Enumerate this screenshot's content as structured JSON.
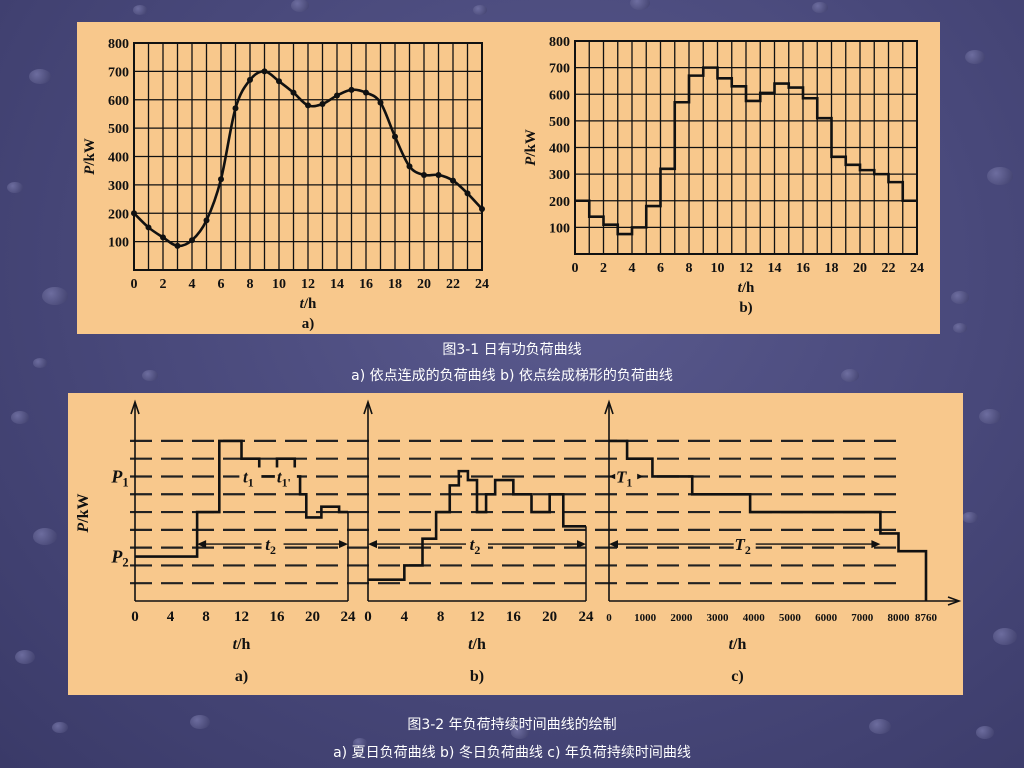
{
  "figure1": {
    "caption_title": "图3-1    日有功负荷曲线",
    "caption_sub": "a) 依点连成的负荷曲线      b) 依点绘成梯形的负荷曲线"
  },
  "figure2": {
    "caption_title": "图3-2  年负荷持续时间曲线的绘制",
    "caption_sub": "a) 夏日负荷曲线   b) 冬日负荷曲线   c) 年负荷持续时间曲线"
  },
  "colors": {
    "panel": "#f8c88c",
    "ink": "#111111",
    "background": "#48487a"
  },
  "chart_data": [
    {
      "id": "fig1a",
      "type": "line",
      "panel_label": "a)",
      "xlabel": "t/h",
      "ylabel": "P/kW",
      "xlim": [
        0,
        24
      ],
      "ylim": [
        0,
        800
      ],
      "xticks": [
        0,
        2,
        4,
        6,
        8,
        10,
        12,
        14,
        16,
        18,
        20,
        22,
        24
      ],
      "yticks": [
        100,
        200,
        300,
        400,
        500,
        600,
        700,
        800
      ],
      "grid": true,
      "markers": true,
      "x": [
        0,
        1,
        2,
        3,
        4,
        5,
        6,
        7,
        8,
        9,
        10,
        11,
        12,
        13,
        14,
        15,
        16,
        17,
        18,
        19,
        20,
        21,
        22,
        23,
        24
      ],
      "y": [
        200,
        150,
        115,
        85,
        105,
        175,
        320,
        570,
        670,
        700,
        665,
        625,
        580,
        585,
        615,
        635,
        625,
        590,
        470,
        365,
        335,
        335,
        315,
        270,
        215
      ]
    },
    {
      "id": "fig1b",
      "type": "line",
      "step": true,
      "panel_label": "b)",
      "xlabel": "t/h",
      "ylabel": "P/kW",
      "xlim": [
        0,
        24
      ],
      "ylim": [
        0,
        800
      ],
      "xticks": [
        0,
        2,
        4,
        6,
        8,
        10,
        12,
        14,
        16,
        18,
        20,
        22,
        24
      ],
      "yticks": [
        100,
        200,
        300,
        400,
        500,
        600,
        700,
        800
      ],
      "grid": true,
      "hour_start": [
        0,
        1,
        2,
        3,
        4,
        5,
        6,
        7,
        8,
        9,
        10,
        11,
        12,
        13,
        14,
        15,
        16,
        17,
        18,
        19,
        20,
        21,
        22,
        23
      ],
      "values": [
        200,
        140,
        110,
        75,
        100,
        180,
        320,
        570,
        670,
        700,
        660,
        630,
        575,
        605,
        640,
        625,
        585,
        510,
        365,
        335,
        315,
        300,
        270,
        200
      ]
    },
    {
      "id": "fig2a",
      "type": "line",
      "step": true,
      "panel_label": "a)",
      "xlabel": "t/h",
      "ylabel": "P/kW",
      "xlim": [
        0,
        24
      ],
      "ylim": [
        0,
        9.5
      ],
      "xticks": [
        0,
        4,
        8,
        12,
        16,
        20,
        24
      ],
      "levels": {
        "P1": 7,
        "P2": 2.5
      },
      "steps": [
        [
          0,
          2.5
        ],
        [
          7,
          5
        ],
        [
          9.5,
          9
        ],
        [
          12,
          8
        ],
        [
          14,
          7
        ],
        [
          16,
          8
        ],
        [
          18,
          7
        ],
        [
          18.6,
          6
        ],
        [
          19.3,
          4.7
        ],
        [
          21,
          5.3
        ],
        [
          23,
          5
        ],
        [
          24,
          5
        ]
      ],
      "annotations": [
        {
          "text": "t1",
          "x_from": 12,
          "x_to": 14,
          "level": 7
        },
        {
          "text": "t1'",
          "x_from": 16,
          "x_to": 18,
          "level": 7
        },
        {
          "text": "t2",
          "x_from": 7,
          "x_to": 24,
          "level": 3.2
        }
      ]
    },
    {
      "id": "fig2b",
      "type": "line",
      "step": true,
      "panel_label": "b)",
      "xlabel": "t/h",
      "ylabel": "",
      "xlim": [
        0,
        24
      ],
      "ylim": [
        0,
        9.5
      ],
      "xticks": [
        0,
        4,
        8,
        12,
        16,
        20,
        24
      ],
      "steps": [
        [
          0,
          1.2
        ],
        [
          4,
          2
        ],
        [
          6,
          3.5
        ],
        [
          7.5,
          5
        ],
        [
          9,
          6.5
        ],
        [
          10,
          7.3
        ],
        [
          11,
          6.8
        ],
        [
          12,
          5
        ],
        [
          13,
          6
        ],
        [
          14,
          6.8
        ],
        [
          16,
          6
        ],
        [
          18,
          5
        ],
        [
          20,
          6
        ],
        [
          21.5,
          4.2
        ],
        [
          24,
          4.2
        ]
      ],
      "annotations": [
        {
          "text": "t2",
          "x_from": 0,
          "x_to": 24,
          "level": 3.2
        }
      ]
    },
    {
      "id": "fig2c",
      "type": "line",
      "step": true,
      "panel_label": "c)",
      "xlabel": "t/h",
      "ylabel": "",
      "xlim": [
        0,
        8760
      ],
      "ylim": [
        0,
        9.5
      ],
      "xticks": [
        0,
        1000,
        2000,
        3000,
        4000,
        5000,
        6000,
        7000,
        8000,
        8760
      ],
      "steps": [
        [
          0,
          9
        ],
        [
          500,
          8
        ],
        [
          1200,
          7
        ],
        [
          2300,
          6
        ],
        [
          3900,
          5
        ],
        [
          7500,
          3.8
        ],
        [
          8000,
          2.8
        ],
        [
          8760,
          0
        ]
      ],
      "annotations": [
        {
          "text": "T1",
          "x_from": 0,
          "x_to": 950,
          "level": 7
        },
        {
          "text": "T2",
          "x_from": 0,
          "x_to": 7500,
          "level": 3.2
        }
      ]
    }
  ]
}
